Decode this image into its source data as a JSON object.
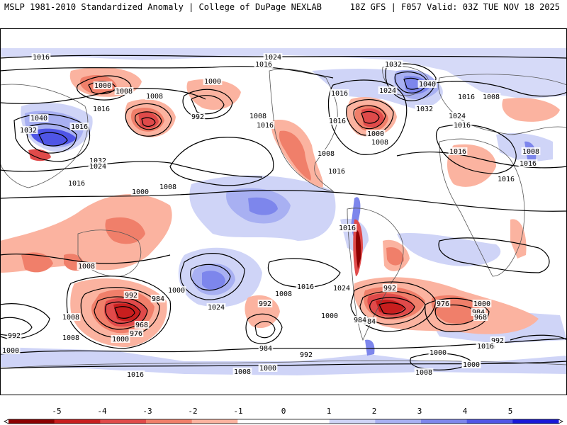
{
  "header": {
    "left": "MSLP 1981-2010 Standardized Anomaly | College of DuPage NEXLAB",
    "right": "18Z GFS | F057 Valid: 03Z TUE NOV 18 2025"
  },
  "colors": {
    "neg5": "#8b0000",
    "neg4": "#c81e1e",
    "neg3": "#e04a4a",
    "neg2": "#f07f6a",
    "neg1": "#fbb3a0",
    "zero": "#ffffff",
    "pos1": "#cfd4f7",
    "pos2": "#a8b0f2",
    "pos3": "#7d86ec",
    "pos4": "#4f55e6",
    "pos5": "#1818d8",
    "contour": "#000000",
    "land": "#555555"
  },
  "colorbar": {
    "ticks": [
      "-5",
      "-4",
      "-3",
      "-2",
      "-1",
      "0",
      "1",
      "2",
      "3",
      "4",
      "5"
    ]
  },
  "isobar_labels": [
    "1016",
    "1024",
    "1016",
    "1032",
    "1040",
    "1016",
    "1008",
    "1000",
    "1008",
    "1008",
    "1000",
    "1016",
    "992",
    "1040",
    "1032",
    "1016",
    "1032",
    "1024",
    "1016",
    "1008",
    "1016",
    "1016",
    "1024",
    "1000",
    "1008",
    "1032",
    "1016",
    "1024",
    "1016",
    "1016",
    "1008",
    "1016",
    "1008",
    "1008",
    "1016",
    "1016",
    "1000",
    "1016",
    "1008",
    "1024",
    "992",
    "984",
    "968",
    "976",
    "1000",
    "1024",
    "992",
    "1000",
    "1016",
    "1008",
    "992",
    "984",
    "976",
    "1000",
    "984",
    "968",
    "984",
    "992",
    "1016",
    "1008",
    "992",
    "1000",
    "1000",
    "1008",
    "1016",
    "1008",
    "1000",
    "984",
    "992",
    "1008",
    "1000",
    "1008",
    "1016",
    "1000"
  ]
}
